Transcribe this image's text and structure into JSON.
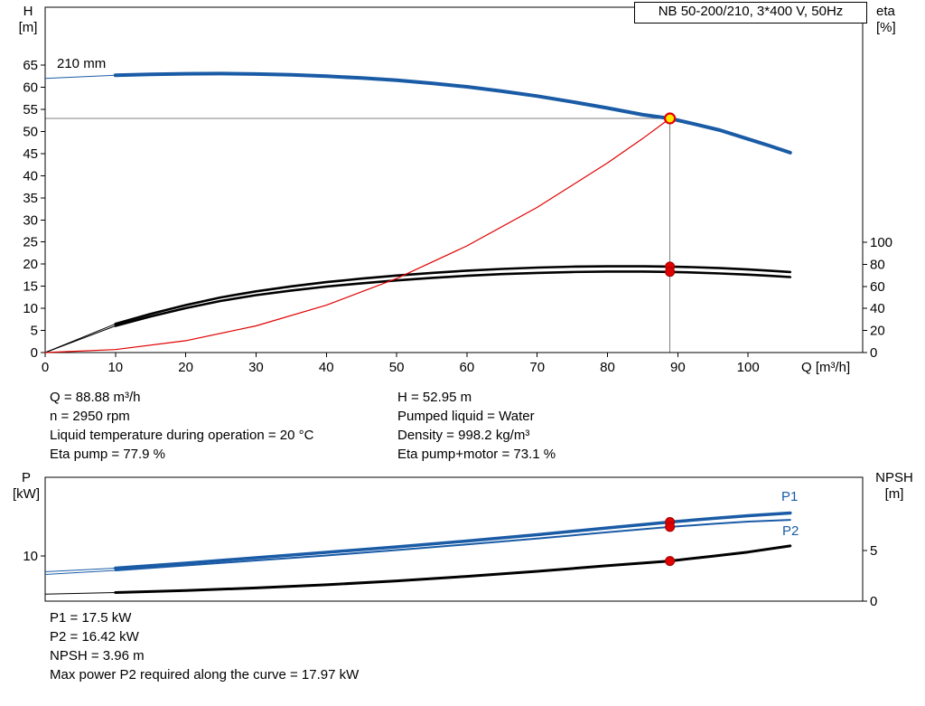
{
  "title_box": {
    "text": "NB 50-200/210, 3*400 V, 50Hz"
  },
  "labels": {
    "h_axis_1": "H",
    "h_axis_2": "[m]",
    "eta_axis_1": "eta",
    "eta_axis_2": "[%]",
    "q_axis": "Q [m³/h]",
    "p_axis_1": "P",
    "p_axis_2": "[kW]",
    "npsh_axis_1": "NPSH",
    "npsh_axis_2": "[m]",
    "impeller": "210 mm",
    "p1": "P1",
    "p2": "P2"
  },
  "info_top": {
    "left": [
      "Q = 88.88 m³/h",
      "n = 2950 rpm",
      "Liquid temperature during operation = 20 °C",
      "Eta pump = 77.9 %"
    ],
    "right": [
      "H = 52.95 m",
      "Pumped liquid = Water",
      "Density = 998.2 kg/m³",
      "Eta pump+motor = 73.1 %"
    ]
  },
  "info_bottom": [
    "P1 = 17.5 kW",
    "P2 = 16.42 kW",
    "NPSH = 3.96 m",
    "Max power P2 required along the curve = 17.97 kW"
  ],
  "colors": {
    "curve_blue": "#1a5ba6",
    "curve_black": "#000000",
    "curve_red": "#e10000",
    "duty_fill": "#ffe800",
    "crosshair": "#808080"
  },
  "chart_data": [
    {
      "name": "qh-eta-chart",
      "type": "line",
      "title": "NB 50-200/210, 3*400 V, 50Hz",
      "x_axis": {
        "label": "Q [m³/h]",
        "min": 0,
        "max": 116.3,
        "ticks": [
          0,
          10,
          20,
          30,
          40,
          50,
          60,
          70,
          80,
          90,
          100
        ]
      },
      "y_left": {
        "label": "H [m]",
        "min": 0,
        "max": 78.1,
        "ticks": [
          0,
          5,
          10,
          15,
          20,
          25,
          30,
          35,
          40,
          45,
          50,
          55,
          60,
          65
        ]
      },
      "y_right": {
        "label": "eta [%]",
        "min": 0,
        "max": 313,
        "ticks": [
          0,
          20,
          40,
          60,
          80,
          100
        ]
      },
      "crosshair": {
        "q": 88.88,
        "h": 52.95
      },
      "series": [
        {
          "name": "eta-pump",
          "axis": "right",
          "color": "#000000",
          "width": 2.6,
          "lead": [
            [
              0,
              0
            ],
            [
              10,
              26
            ]
          ],
          "points": [
            [
              10,
              26
            ],
            [
              15,
              35
            ],
            [
              20,
              43
            ],
            [
              25,
              50
            ],
            [
              30,
              55.5
            ],
            [
              35,
              60
            ],
            [
              40,
              63.8
            ],
            [
              45,
              67
            ],
            [
              50,
              69.8
            ],
            [
              55,
              72.2
            ],
            [
              60,
              74.2
            ],
            [
              65,
              75.8
            ],
            [
              70,
              77
            ],
            [
              75,
              77.8
            ],
            [
              80,
              78.2
            ],
            [
              85,
              78.2
            ],
            [
              88.88,
              77.9
            ],
            [
              92,
              77.4
            ],
            [
              96,
              76.5
            ],
            [
              100,
              75.3
            ],
            [
              103,
              74.2
            ],
            [
              106,
              73
            ]
          ]
        },
        {
          "name": "eta-pump-motor",
          "axis": "right",
          "color": "#000000",
          "width": 2.6,
          "lead": [
            [
              0,
              0
            ],
            [
              10,
              24.2
            ]
          ],
          "points": [
            [
              10,
              24.2
            ],
            [
              15,
              32.7
            ],
            [
              20,
              40.2
            ],
            [
              25,
              46.8
            ],
            [
              30,
              52
            ],
            [
              35,
              56.2
            ],
            [
              40,
              59.8
            ],
            [
              45,
              62.8
            ],
            [
              50,
              65.4
            ],
            [
              55,
              67.7
            ],
            [
              60,
              69.6
            ],
            [
              65,
              71.1
            ],
            [
              70,
              72.2
            ],
            [
              75,
              73
            ],
            [
              80,
              73.4
            ],
            [
              85,
              73.4
            ],
            [
              88.88,
              73.1
            ],
            [
              92,
              72.6
            ],
            [
              96,
              71.7
            ],
            [
              100,
              70.6
            ],
            [
              103,
              69.6
            ],
            [
              106,
              68.4
            ]
          ]
        },
        {
          "name": "system-curve",
          "axis": "left",
          "color": "#e10000",
          "width": 1.2,
          "points": [
            [
              0,
              0
            ],
            [
              10,
              0.67
            ],
            [
              20,
              2.68
            ],
            [
              30,
              6.03
            ],
            [
              40,
              10.72
            ],
            [
              50,
              16.75
            ],
            [
              60,
              24.12
            ],
            [
              70,
              32.83
            ],
            [
              80,
              42.88
            ],
            [
              85,
              48.4
            ],
            [
              88.88,
              52.95
            ]
          ]
        },
        {
          "name": "head-210mm",
          "axis": "left",
          "color": "#1a5ba6",
          "width": 4,
          "lead": [
            [
              0,
              62
            ],
            [
              10,
              62.7
            ]
          ],
          "points": [
            [
              10,
              62.7
            ],
            [
              15,
              62.9
            ],
            [
              20,
              63.05
            ],
            [
              25,
              63.1
            ],
            [
              30,
              63
            ],
            [
              35,
              62.8
            ],
            [
              40,
              62.5
            ],
            [
              45,
              62.1
            ],
            [
              50,
              61.6
            ],
            [
              55,
              60.9
            ],
            [
              60,
              60.1
            ],
            [
              65,
              59.1
            ],
            [
              70,
              58
            ],
            [
              75,
              56.7
            ],
            [
              80,
              55.3
            ],
            [
              85,
              53.8
            ],
            [
              88.88,
              52.95
            ],
            [
              92,
              51.8
            ],
            [
              96,
              50.3
            ],
            [
              100,
              48.3
            ],
            [
              103,
              46.8
            ],
            [
              106,
              45.2
            ]
          ]
        }
      ],
      "markers": [
        {
          "name": "duty-point",
          "axis": "left",
          "q": 88.88,
          "v": 52.95,
          "r": 5.5,
          "fill": "#ffe800",
          "stroke": "#e10000",
          "stroke_width": 2.2,
          "interactable": true
        },
        {
          "name": "eta-pump-duty-dot",
          "axis": "right",
          "q": 88.88,
          "v": 77.9,
          "r": 5,
          "fill": "#e10000",
          "stroke": "#a00000",
          "stroke_width": 1,
          "interactable": false
        },
        {
          "name": "eta-motor-duty-dot",
          "axis": "right",
          "q": 88.88,
          "v": 73.1,
          "r": 5,
          "fill": "#e10000",
          "stroke": "#a00000",
          "stroke_width": 1,
          "interactable": false
        }
      ]
    },
    {
      "name": "power-npsh-chart",
      "type": "line",
      "x_axis": {
        "label": "Q [m³/h]",
        "min": 0,
        "max": 116.3,
        "ticks": []
      },
      "y_left": {
        "label": "P [kW]",
        "min": 0,
        "max": 27.4,
        "ticks": [
          10
        ]
      },
      "y_right": {
        "label": "NPSH [m]",
        "min": 0,
        "max": 12.23,
        "ticks": [
          0,
          5
        ]
      },
      "series": [
        {
          "name": "p2-power",
          "axis": "left",
          "color": "#1a5ba6",
          "width": 2,
          "lead": [
            [
              0,
              5.9
            ],
            [
              10,
              6.8
            ]
          ],
          "points": [
            [
              10,
              6.8
            ],
            [
              20,
              7.9
            ],
            [
              30,
              9
            ],
            [
              40,
              10.1
            ],
            [
              50,
              11.3
            ],
            [
              60,
              12.55
            ],
            [
              70,
              13.85
            ],
            [
              80,
              15.25
            ],
            [
              88.88,
              16.42
            ],
            [
              95,
              17.1
            ],
            [
              100,
              17.6
            ],
            [
              106,
              17.97
            ]
          ]
        },
        {
          "name": "p1-power",
          "axis": "left",
          "color": "#1a5ba6",
          "width": 3.5,
          "lead": [
            [
              0,
              6.5
            ],
            [
              10,
              7.3
            ]
          ],
          "points": [
            [
              10,
              7.3
            ],
            [
              20,
              8.4
            ],
            [
              30,
              9.6
            ],
            [
              40,
              10.8
            ],
            [
              50,
              12
            ],
            [
              60,
              13.3
            ],
            [
              70,
              14.7
            ],
            [
              80,
              16.2
            ],
            [
              88.88,
              17.5
            ],
            [
              95,
              18.3
            ],
            [
              100,
              18.9
            ],
            [
              106,
              19.5
            ]
          ]
        },
        {
          "name": "npsh",
          "axis": "right",
          "color": "#000000",
          "width": 3,
          "lead": [
            [
              0,
              0.7
            ],
            [
              10,
              0.85
            ]
          ],
          "points": [
            [
              10,
              0.85
            ],
            [
              20,
              1.05
            ],
            [
              30,
              1.3
            ],
            [
              40,
              1.62
            ],
            [
              50,
              2
            ],
            [
              60,
              2.45
            ],
            [
              70,
              2.95
            ],
            [
              80,
              3.5
            ],
            [
              88.88,
              3.96
            ],
            [
              95,
              4.45
            ],
            [
              100,
              4.85
            ],
            [
              106,
              5.45
            ]
          ]
        }
      ],
      "markers": [
        {
          "name": "p1-duty-dot",
          "axis": "left",
          "q": 88.88,
          "v": 17.5,
          "r": 5,
          "fill": "#e10000",
          "stroke": "#a00000",
          "stroke_width": 1,
          "interactable": false
        },
        {
          "name": "p2-duty-dot",
          "axis": "left",
          "q": 88.88,
          "v": 16.42,
          "r": 5,
          "fill": "#e10000",
          "stroke": "#a00000",
          "stroke_width": 1,
          "interactable": false
        },
        {
          "name": "npsh-duty-dot",
          "axis": "right",
          "q": 88.88,
          "v": 3.96,
          "r": 5,
          "fill": "#e10000",
          "stroke": "#a00000",
          "stroke_width": 1,
          "interactable": false
        }
      ]
    }
  ]
}
